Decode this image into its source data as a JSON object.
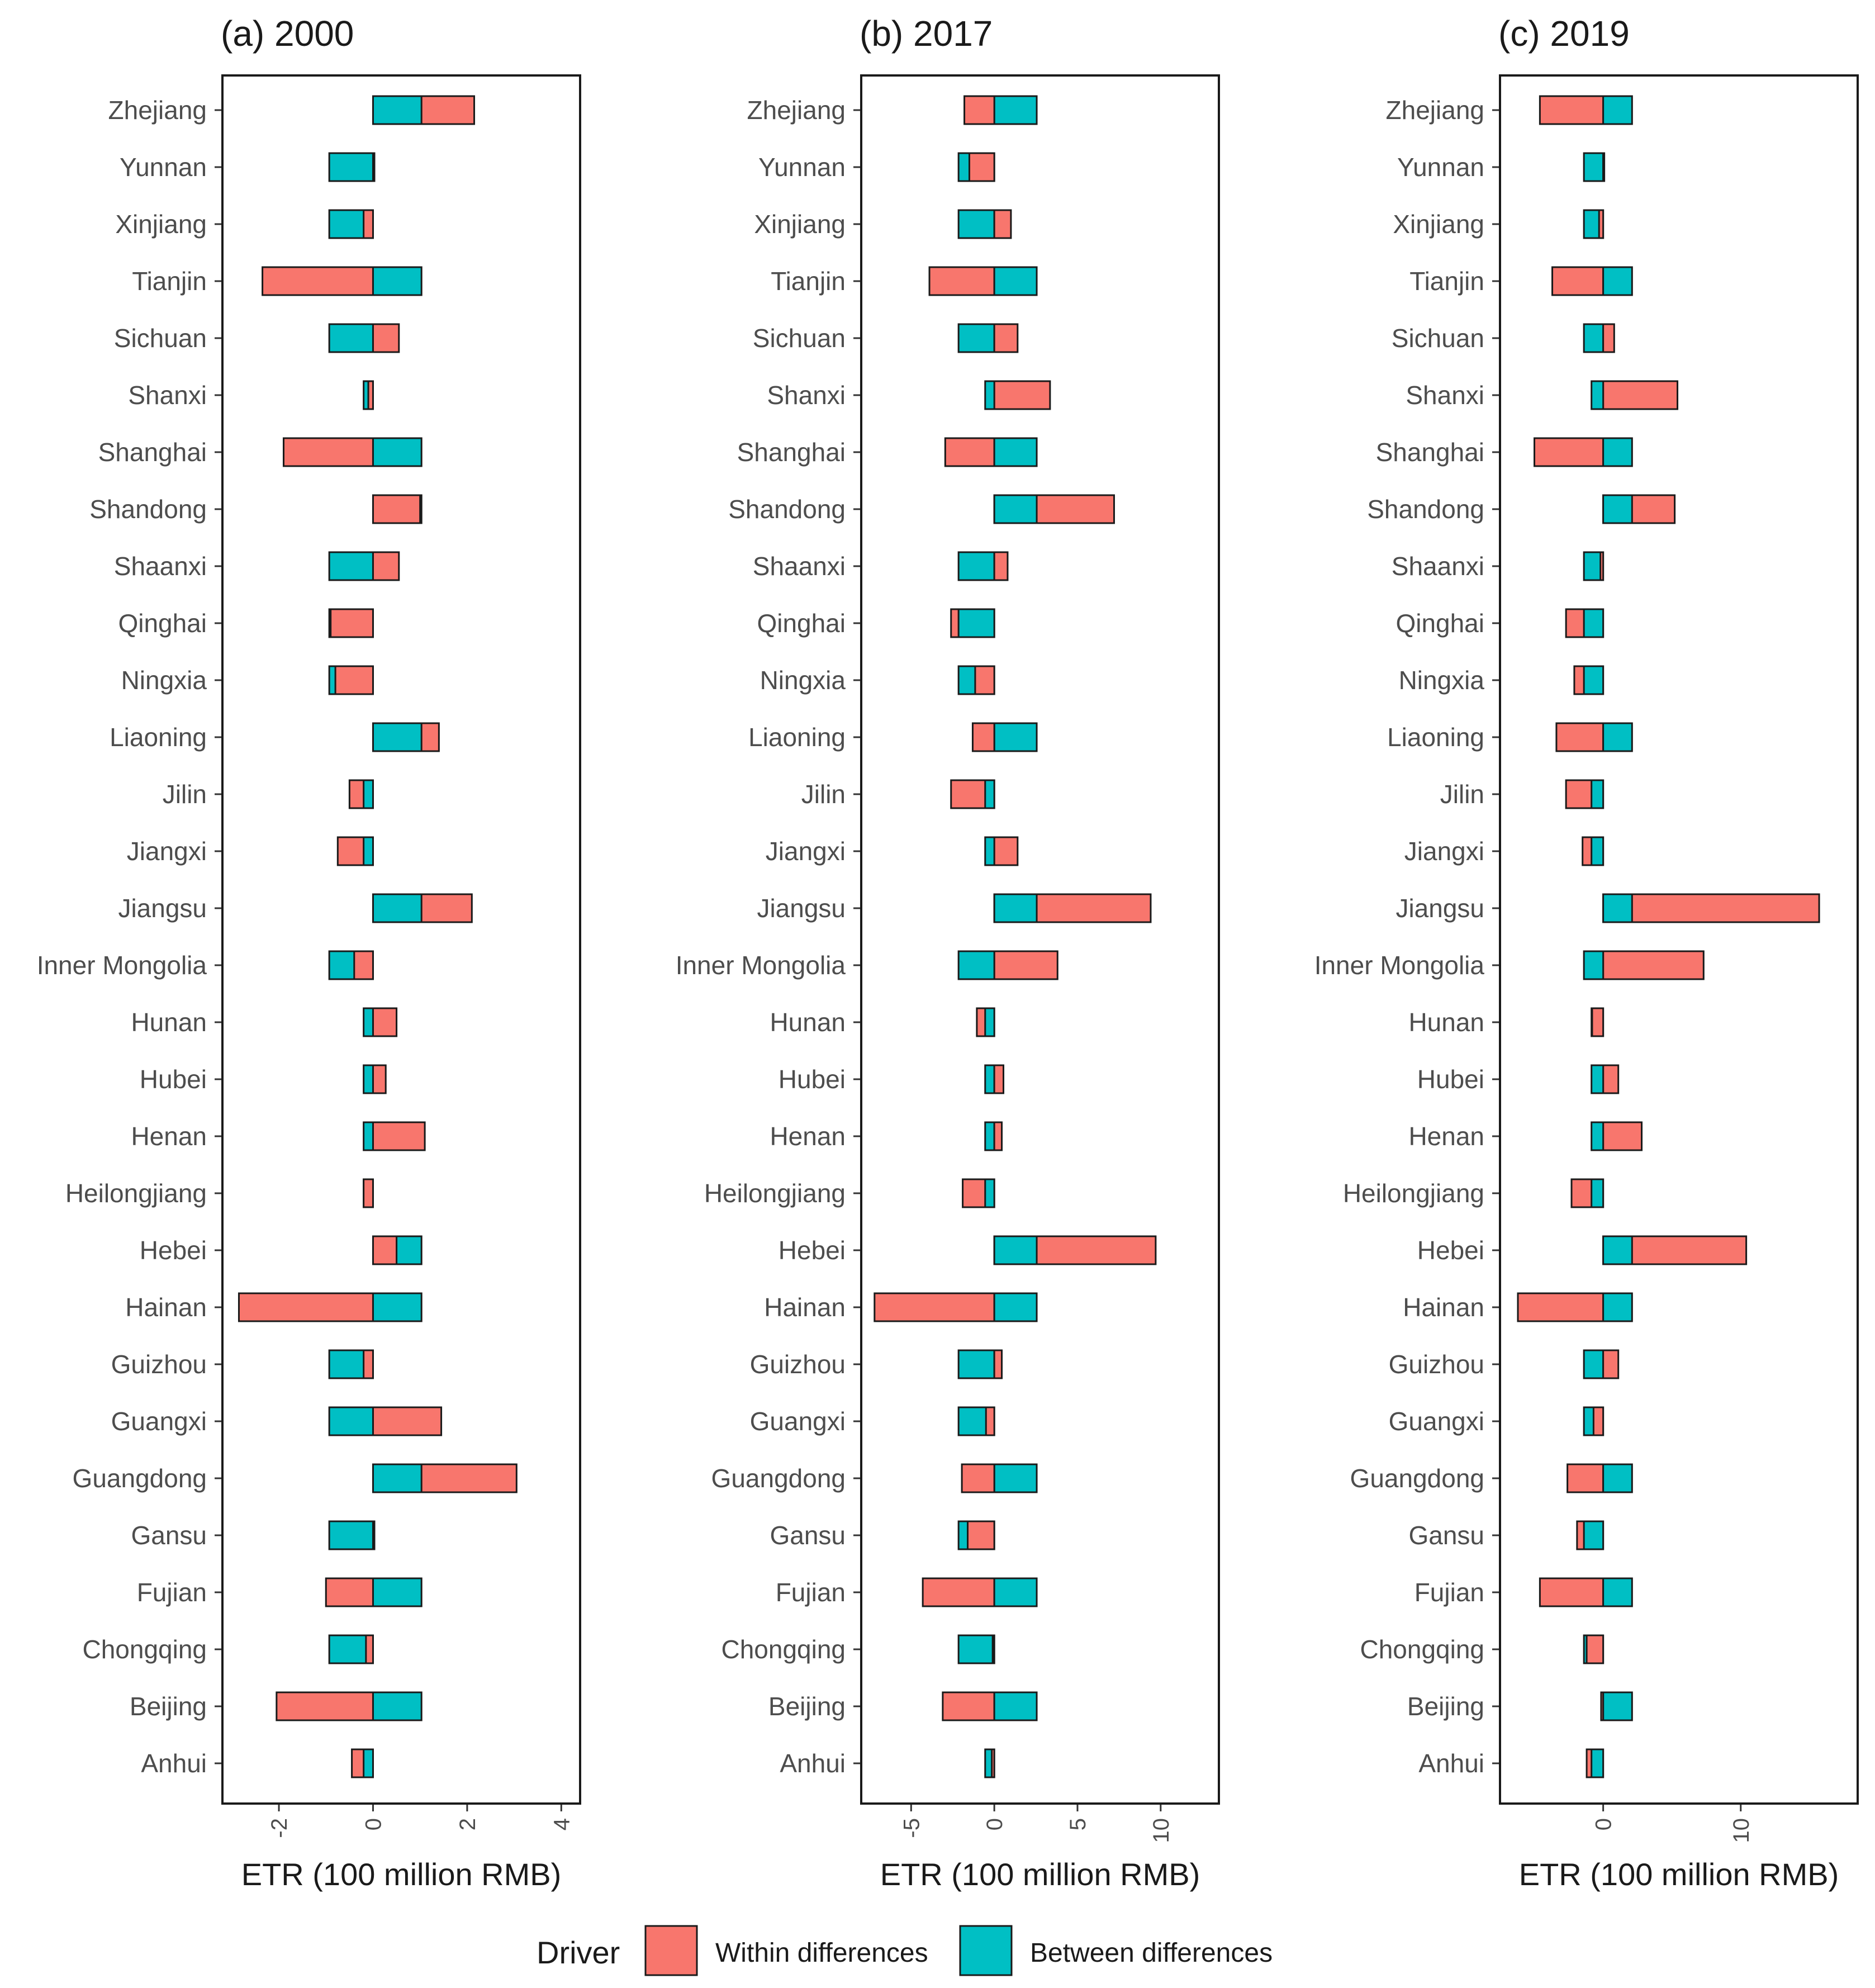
{
  "chart_data": {
    "type": "bar",
    "orientation": "horizontal",
    "stacked": "diverging",
    "x_axis_title": "ETR (100 million RMB)",
    "legend": {
      "title": "Driver",
      "entries": [
        {
          "name": "Within differences",
          "color": "#F8766D"
        },
        {
          "name": "Between differences",
          "color": "#00BFC4"
        }
      ]
    },
    "categories": [
      "Zhejiang",
      "Yunnan",
      "Xinjiang",
      "Tianjin",
      "Sichuan",
      "Shanxi",
      "Shanghai",
      "Shandong",
      "Shaanxi",
      "Qinghai",
      "Ningxia",
      "Liaoning",
      "Jilin",
      "Jiangxi",
      "Jiangsu",
      "Inner Mongolia",
      "Hunan",
      "Hubei",
      "Henan",
      "Heilongjiang",
      "Hebei",
      "Hainan",
      "Guizhou",
      "Guangxi",
      "Guangdong",
      "Gansu",
      "Fujian",
      "Chongqing",
      "Beijing",
      "Anhui"
    ],
    "panels": [
      {
        "title": "(a) 2000",
        "xlim": [
          -3.2,
          4.4
        ],
        "xticks": [
          -2,
          0,
          2,
          4
        ],
        "xtick_labels": [
          "-2",
          "0",
          "2",
          "4"
        ],
        "series": [
          {
            "name": "Between differences",
            "values": [
              1.03,
              -0.93,
              -0.93,
              1.03,
              -0.93,
              -0.2,
              1.03,
              1.03,
              -0.93,
              -0.93,
              -0.93,
              1.03,
              -0.2,
              -0.2,
              1.03,
              -0.93,
              -0.2,
              -0.2,
              -0.2,
              -0.2,
              1.03,
              1.03,
              -0.93,
              -0.93,
              1.03,
              -0.93,
              1.03,
              -0.93,
              1.03,
              -0.2
            ]
          },
          {
            "name": "Within differences",
            "values": [
              2.15,
              0.03,
              -0.2,
              -2.35,
              0.55,
              -0.1,
              -1.9,
              1.0,
              0.55,
              -0.9,
              -0.8,
              1.4,
              -0.5,
              -0.75,
              2.1,
              -0.4,
              0.5,
              0.27,
              1.1,
              -0.2,
              0.5,
              -2.85,
              -0.2,
              1.45,
              3.05,
              0.03,
              -1.0,
              -0.15,
              -2.05,
              -0.45
            ]
          }
        ]
      },
      {
        "title": "(b) 2017",
        "xlim": [
          -8.0,
          13.5
        ],
        "xticks": [
          -5,
          0,
          5,
          10
        ],
        "xtick_labels": [
          "-5",
          "0",
          "5",
          "10"
        ],
        "series": [
          {
            "name": "Between differences",
            "values": [
              2.55,
              -2.15,
              -2.15,
              2.55,
              -2.15,
              -0.55,
              2.55,
              2.55,
              -2.15,
              -2.15,
              -2.15,
              2.55,
              -0.55,
              -0.55,
              2.55,
              -2.15,
              -0.55,
              -0.55,
              -0.55,
              -0.55,
              2.55,
              2.55,
              -2.15,
              -2.15,
              2.55,
              -2.15,
              2.55,
              -2.15,
              2.55,
              -0.55
            ]
          },
          {
            "name": "Within differences",
            "values": [
              -1.8,
              -1.5,
              1.0,
              -3.9,
              1.4,
              3.35,
              -2.95,
              7.2,
              0.8,
              -2.6,
              -1.15,
              -1.3,
              -2.6,
              1.4,
              9.4,
              3.8,
              -1.05,
              0.55,
              0.45,
              -1.9,
              9.7,
              -7.2,
              0.45,
              -0.5,
              -1.95,
              -1.6,
              -4.3,
              -0.1,
              -3.1,
              -0.15
            ]
          }
        ]
      },
      {
        "title": "(c) 2019",
        "xlim": [
          -7.5,
          18.5
        ],
        "xticks": [
          0,
          10
        ],
        "xtick_labels": [
          "0",
          "10"
        ],
        "series": [
          {
            "name": "Between differences",
            "values": [
              2.1,
              -1.4,
              -1.4,
              2.1,
              -1.4,
              -0.85,
              2.1,
              2.1,
              -1.4,
              -1.4,
              -1.4,
              2.1,
              -0.85,
              -0.85,
              2.1,
              -1.4,
              -0.85,
              -0.85,
              -0.85,
              -0.85,
              2.1,
              2.1,
              -1.4,
              -1.4,
              2.1,
              -1.4,
              2.1,
              -1.4,
              2.1,
              -0.85
            ]
          },
          {
            "name": "Within differences",
            "values": [
              -4.6,
              0.0,
              -0.3,
              -3.7,
              0.8,
              5.4,
              -5.0,
              5.2,
              -0.2,
              -2.7,
              -2.1,
              -3.4,
              -2.7,
              -1.5,
              15.7,
              7.3,
              -0.8,
              1.1,
              2.8,
              -2.3,
              10.4,
              -6.2,
              1.1,
              -0.7,
              -2.6,
              -1.9,
              -4.6,
              -1.2,
              -0.15,
              -1.2
            ]
          }
        ]
      }
    ]
  }
}
